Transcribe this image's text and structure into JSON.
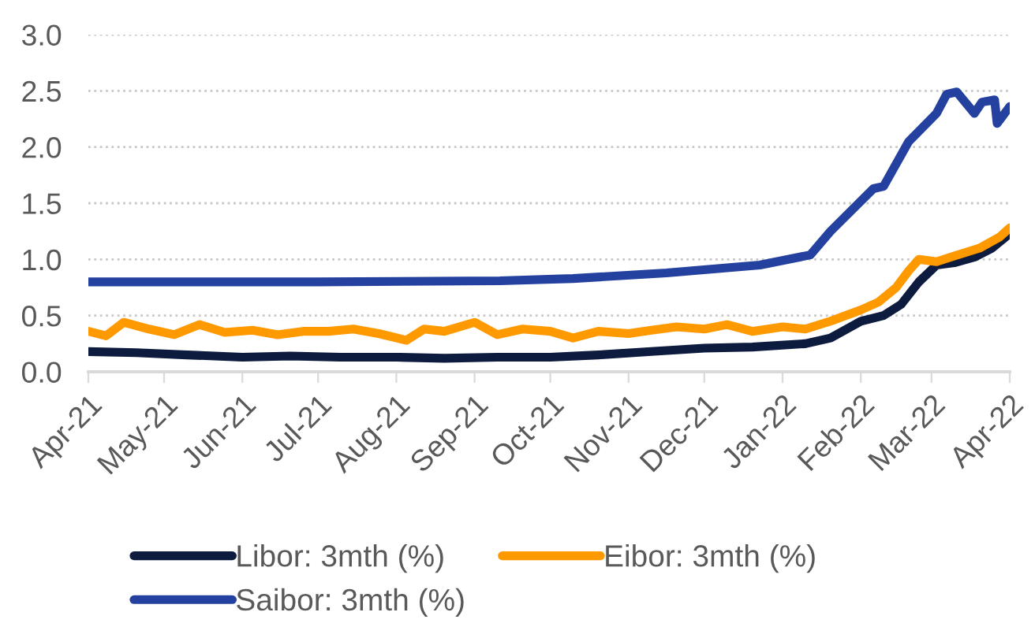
{
  "chart_data": {
    "type": "line",
    "legend": "bottom",
    "grid": "y",
    "line_style": "solid",
    "marker": "none",
    "xlim": [
      "2021-04-01",
      "2022-04-01"
    ],
    "xticks": [
      {
        "value": "2021-04-01",
        "label": "Apr-21"
      },
      {
        "value": "2021-05-01",
        "label": "May-21"
      },
      {
        "value": "2021-06-01",
        "label": "Jun-21"
      },
      {
        "value": "2021-07-01",
        "label": "Jul-21"
      },
      {
        "value": "2021-08-01",
        "label": "Aug-21"
      },
      {
        "value": "2021-09-01",
        "label": "Sep-21"
      },
      {
        "value": "2021-10-01",
        "label": "Oct-21"
      },
      {
        "value": "2021-11-01",
        "label": "Nov-21"
      },
      {
        "value": "2021-12-01",
        "label": "Dec-21"
      },
      {
        "value": "2022-01-01",
        "label": "Jan-22"
      },
      {
        "value": "2022-02-01",
        "label": "Feb-22"
      },
      {
        "value": "2022-03-01",
        "label": "Mar-22"
      },
      {
        "value": "2022-04-01",
        "label": "Apr-22"
      }
    ],
    "ylim": [
      0,
      3
    ],
    "yticks": [
      {
        "value": 0,
        "label": "0.0"
      },
      {
        "value": 0.5,
        "label": "0.5"
      },
      {
        "value": 1,
        "label": "1.0"
      },
      {
        "value": 1.5,
        "label": "1.5"
      },
      {
        "value": 2,
        "label": "2.0"
      },
      {
        "value": 2.5,
        "label": "2.5"
      },
      {
        "value": 3,
        "label": "3.0"
      }
    ],
    "series": [
      {
        "name": "Libor: 3mth (%)",
        "color": "#0d1b3e",
        "x": [
          "2021-04-01",
          "2021-04-20",
          "2021-05-10",
          "2021-06-01",
          "2021-06-20",
          "2021-07-10",
          "2021-08-01",
          "2021-08-20",
          "2021-09-10",
          "2021-10-01",
          "2021-10-20",
          "2021-11-10",
          "2021-12-01",
          "2021-12-20",
          "2022-01-10",
          "2022-01-20",
          "2022-02-01",
          "2022-02-10",
          "2022-02-17",
          "2022-02-24",
          "2022-03-03",
          "2022-03-10",
          "2022-03-18",
          "2022-03-25",
          "2022-04-01"
        ],
        "values": [
          0.18,
          0.17,
          0.15,
          0.13,
          0.14,
          0.13,
          0.13,
          0.12,
          0.13,
          0.13,
          0.15,
          0.18,
          0.21,
          0.22,
          0.25,
          0.3,
          0.45,
          0.5,
          0.6,
          0.8,
          0.95,
          0.97,
          1.02,
          1.1,
          1.23
        ]
      },
      {
        "name": "Eibor: 3mth (%)",
        "color": "#ff9900",
        "x": [
          "2021-04-01",
          "2021-04-08",
          "2021-04-15",
          "2021-04-25",
          "2021-05-05",
          "2021-05-15",
          "2021-05-25",
          "2021-06-05",
          "2021-06-15",
          "2021-06-25",
          "2021-07-05",
          "2021-07-15",
          "2021-07-25",
          "2021-08-05",
          "2021-08-12",
          "2021-08-20",
          "2021-09-01",
          "2021-09-10",
          "2021-09-20",
          "2021-10-01",
          "2021-10-10",
          "2021-10-20",
          "2021-11-01",
          "2021-11-10",
          "2021-11-20",
          "2021-12-01",
          "2021-12-10",
          "2021-12-20",
          "2022-01-01",
          "2022-01-10",
          "2022-01-20",
          "2022-02-01",
          "2022-02-08",
          "2022-02-15",
          "2022-02-20",
          "2022-02-24",
          "2022-03-03",
          "2022-03-10",
          "2022-03-20",
          "2022-03-28",
          "2022-04-01"
        ],
        "values": [
          0.36,
          0.32,
          0.44,
          0.38,
          0.33,
          0.42,
          0.35,
          0.37,
          0.33,
          0.36,
          0.36,
          0.38,
          0.34,
          0.28,
          0.38,
          0.36,
          0.44,
          0.33,
          0.38,
          0.36,
          0.3,
          0.36,
          0.34,
          0.37,
          0.4,
          0.38,
          0.42,
          0.36,
          0.4,
          0.38,
          0.45,
          0.55,
          0.62,
          0.75,
          0.9,
          1.0,
          0.98,
          1.03,
          1.1,
          1.2,
          1.28
        ]
      },
      {
        "name": "Saibor: 3mth (%)",
        "color": "#2541a0",
        "x": [
          "2021-04-01",
          "2021-07-01",
          "2021-09-11",
          "2021-10-10",
          "2021-11-16",
          "2021-12-23",
          "2022-01-12",
          "2022-01-20",
          "2022-02-06",
          "2022-02-10",
          "2022-02-20",
          "2022-03-03",
          "2022-03-07",
          "2022-03-11",
          "2022-03-18",
          "2022-03-21",
          "2022-03-26",
          "2022-03-27",
          "2022-04-01"
        ],
        "values": [
          0.8,
          0.8,
          0.81,
          0.83,
          0.88,
          0.95,
          1.04,
          1.25,
          1.63,
          1.65,
          2.05,
          2.3,
          2.47,
          2.49,
          2.3,
          2.4,
          2.42,
          2.21,
          2.36
        ]
      }
    ]
  }
}
